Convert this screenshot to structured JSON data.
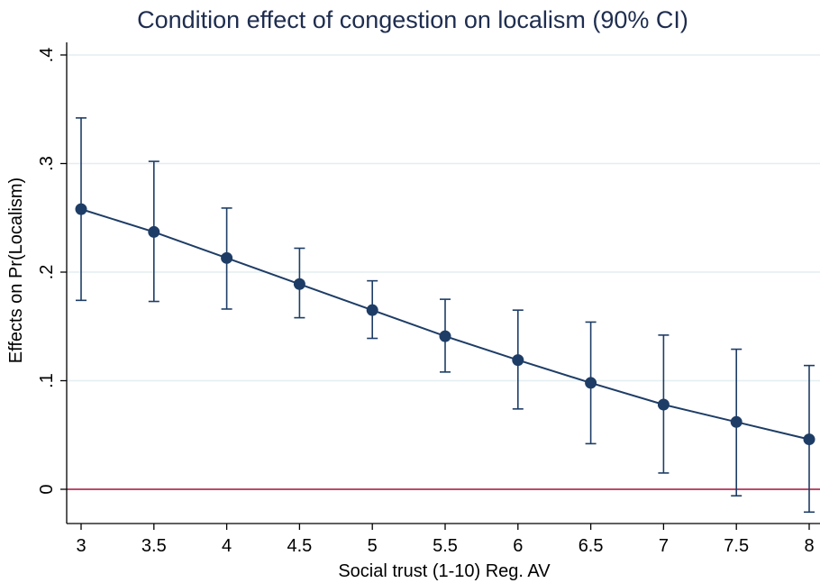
{
  "chart_data": {
    "type": "line",
    "title": "Condition effect of congestion on localism (90% CI)",
    "xlabel": "Social trust (1-10) Reg. AV",
    "ylabel": "Effects on Pr(Localism)",
    "x": [
      3,
      3.5,
      4,
      4.5,
      5,
      5.5,
      6,
      6.5,
      7,
      7.5,
      8
    ],
    "series": [
      {
        "values": [
          0.258,
          0.237,
          0.213,
          0.189,
          0.165,
          0.141,
          0.119,
          0.098,
          0.078,
          0.062,
          0.046
        ],
        "ci_lower": [
          0.174,
          0.173,
          0.166,
          0.158,
          0.139,
          0.108,
          0.074,
          0.042,
          0.015,
          -0.006,
          -0.021
        ],
        "ci_upper": [
          0.342,
          0.302,
          0.259,
          0.222,
          0.192,
          0.175,
          0.165,
          0.154,
          0.142,
          0.129,
          0.114
        ]
      }
    ],
    "xlim": [
      3,
      8
    ],
    "ylim": [
      -0.03,
      0.4
    ],
    "xticks": [
      3,
      3.5,
      4,
      4.5,
      5,
      5.5,
      6,
      6.5,
      7,
      7.5,
      8
    ],
    "xtick_labels": [
      "3",
      "3.5",
      "4",
      "4.5",
      "5",
      "5.5",
      "6",
      "6.5",
      "7",
      "7.5",
      "8"
    ],
    "yticks": [
      0,
      0.1,
      0.2,
      0.3,
      0.4
    ],
    "ytick_labels": [
      "0",
      ".1",
      ".2",
      ".3",
      ".4"
    ],
    "reference_line": {
      "y": 0,
      "color": "#a3123a"
    },
    "grid": true,
    "colors": {
      "series": "#1e3d66",
      "grid": "#e3eef1",
      "axis": "#000000"
    }
  }
}
